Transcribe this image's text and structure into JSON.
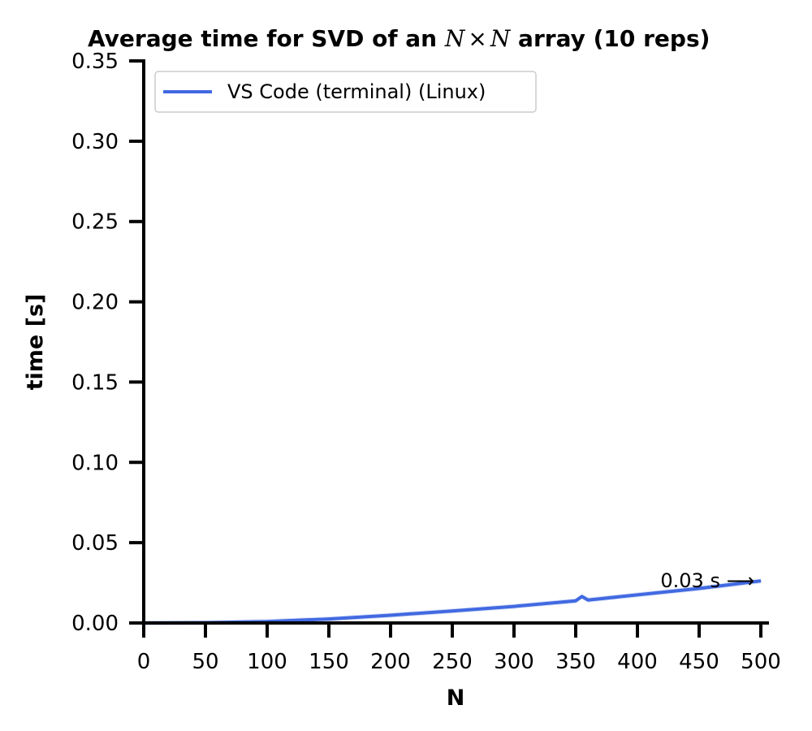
{
  "chart_data": {
    "type": "line",
    "title": {
      "prefix": "Average time for SVD of an ",
      "var1": "N",
      "times": "×",
      "var2": "N",
      "suffix": " array (10 reps)"
    },
    "xlabel": "N",
    "ylabel": "time [s]",
    "xlim": [
      0,
      500
    ],
    "ylim": [
      0,
      0.35
    ],
    "xticks": [
      "0",
      "50",
      "100",
      "150",
      "200",
      "250",
      "300",
      "350",
      "400",
      "450",
      "500"
    ],
    "yticks": [
      "0.00",
      "0.05",
      "0.10",
      "0.15",
      "0.20",
      "0.25",
      "0.30",
      "0.35"
    ],
    "grid": false,
    "legend_position": "top-left",
    "series": [
      {
        "name": "VS Code (terminal) (Linux)",
        "color": "#4169e1",
        "x": [
          0,
          50,
          100,
          150,
          200,
          250,
          300,
          350,
          355,
          360,
          400,
          450,
          500
        ],
        "y": [
          0.0,
          0.0002,
          0.0009,
          0.0025,
          0.0048,
          0.0075,
          0.0103,
          0.0138,
          0.0165,
          0.0143,
          0.0175,
          0.0215,
          0.0262
        ]
      }
    ],
    "annotation": {
      "text": "0.03 s ⟶",
      "x": 500,
      "y": 0.0262
    }
  }
}
